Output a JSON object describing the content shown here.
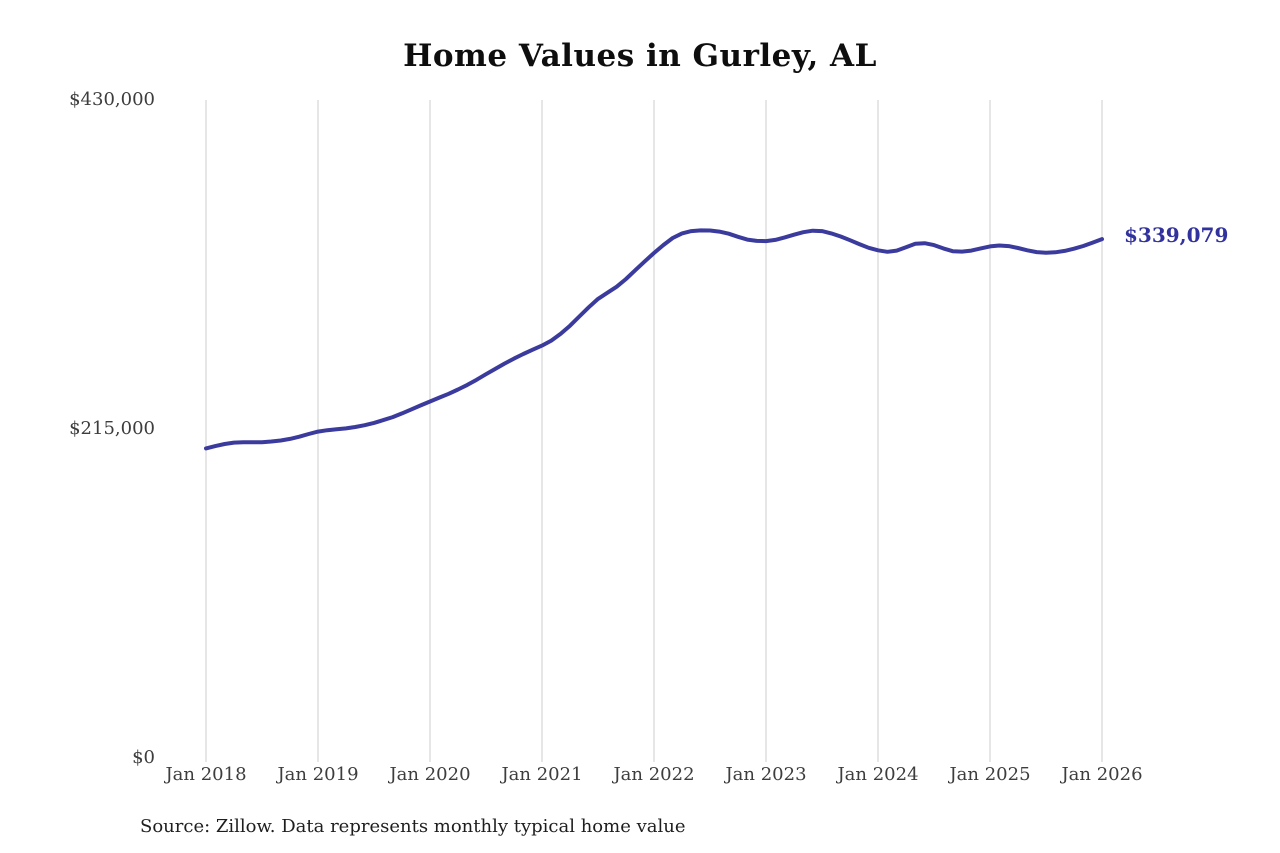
{
  "chart_data": {
    "type": "line",
    "title": "Home Values in Gurley, AL",
    "xlabel": "",
    "ylabel": "",
    "y_axis_range": [
      0,
      430000
    ],
    "y_ticks": [
      {
        "label": "$430,000",
        "value": 430000
      },
      {
        "label": "$215,000",
        "value": 215000
      },
      {
        "label": "$0",
        "value": 0
      }
    ],
    "x_tick_labels": [
      "Jan 2018",
      "Jan 2019",
      "Jan 2020",
      "Jan 2021",
      "Jan 2022",
      "Jan 2023",
      "Jan 2024",
      "Jan 2025",
      "Jan 2026"
    ],
    "grid": "vertical-gridlines-only",
    "legend_position": "none",
    "line_color": "#3b3b9e",
    "gridline_color": "#cccccc",
    "end_label": "$339,079",
    "last_value": 339079,
    "series": [
      {
        "name": "Monthly typical home value",
        "start_month": "Jan 2018",
        "frequency": "monthly",
        "values": [
          202300,
          203800,
          205200,
          206100,
          206400,
          206300,
          206400,
          206800,
          207500,
          208500,
          210000,
          211700,
          213300,
          214200,
          214800,
          215400,
          216300,
          217500,
          219000,
          220800,
          222800,
          225200,
          227800,
          230400,
          233000,
          235500,
          238000,
          240800,
          243800,
          247200,
          250800,
          254300,
          257800,
          261000,
          264000,
          266800,
          269500,
          272800,
          277200,
          282500,
          288500,
          294500,
          300000,
          304000,
          308000,
          313000,
          318800,
          324500,
          330000,
          335200,
          339800,
          342800,
          344300,
          344800,
          344700,
          344000,
          342600,
          340600,
          338800,
          337900,
          337800,
          338600,
          340200,
          342000,
          343600,
          344600,
          344300,
          342800,
          340800,
          338400,
          335800,
          333400,
          331800,
          330800,
          331600,
          333800,
          336000,
          336400,
          335200,
          333000,
          331200,
          330900,
          331600,
          333000,
          334300,
          334900,
          334500,
          333300,
          331800,
          330600,
          330200,
          330500,
          331400,
          332800,
          334600,
          336800,
          339079
        ]
      }
    ],
    "source": "Source: Zillow. Data represents monthly typical home value"
  }
}
